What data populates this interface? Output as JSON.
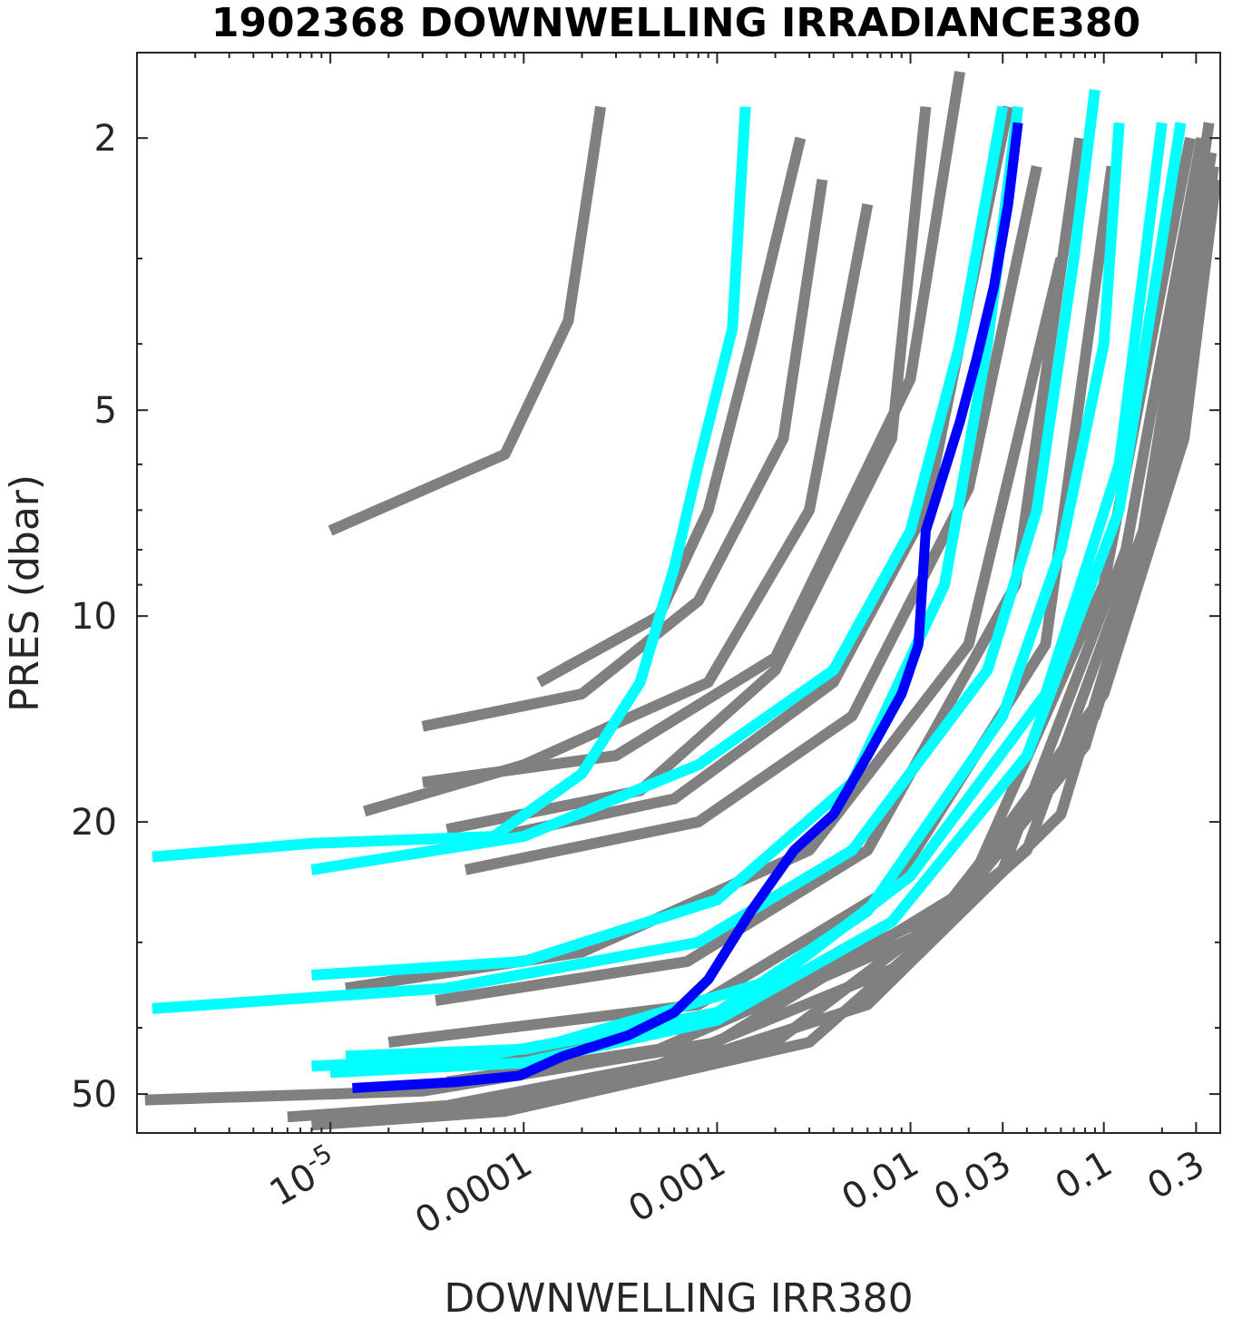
{
  "chart_data": {
    "type": "line",
    "title": "1902368  DOWNWELLING IRRADIANCE380",
    "xlabel": "DOWNWELLING IRR380",
    "ylabel": "PRES (dbar)",
    "x_scale": "log",
    "y_scale": "log",
    "y_reversed": true,
    "xlim": [
      1e-06,
      0.4
    ],
    "ylim": [
      1.5,
      57
    ],
    "x_ticks": [
      {
        "value": 1e-05,
        "base": "10",
        "exp": "-5"
      },
      {
        "value": 0.0001,
        "label": "0.0001"
      },
      {
        "value": 0.001,
        "label": "0.001"
      },
      {
        "value": 0.01,
        "label": "0.01"
      },
      {
        "value": 0.03,
        "label": "0.03"
      },
      {
        "value": 0.1,
        "label": "0.1"
      },
      {
        "value": 0.3,
        "label": "0.3"
      }
    ],
    "y_ticks": [
      {
        "value": 2,
        "label": "2"
      },
      {
        "value": 5,
        "label": "5"
      },
      {
        "value": 10,
        "label": "10"
      },
      {
        "value": 20,
        "label": "20"
      },
      {
        "value": 50,
        "label": "50"
      }
    ],
    "grid": false,
    "legend": "none",
    "colors": {
      "history": "#808080",
      "recent": "#00ffff",
      "current": "#0000ff"
    },
    "series": [
      {
        "group": "history",
        "points": [
          [
            1e-05,
            7.5
          ],
          [
            8e-05,
            5.8
          ],
          [
            0.00017,
            3.7
          ],
          [
            0.00025,
            1.8
          ]
        ]
      },
      {
        "group": "history",
        "points": [
          [
            0.00012,
            12.5
          ],
          [
            0.0005,
            10.0
          ],
          [
            0.0009,
            7.0
          ],
          [
            0.0015,
            4.0
          ],
          [
            0.0027,
            2.0
          ]
        ]
      },
      {
        "group": "history",
        "points": [
          [
            3e-05,
            14.5
          ],
          [
            0.0002,
            13.0
          ],
          [
            0.0008,
            9.5
          ],
          [
            0.0022,
            5.5
          ],
          [
            0.0035,
            2.3
          ]
        ]
      },
      {
        "group": "history",
        "points": [
          [
            1.5e-05,
            19.3
          ],
          [
            0.0001,
            16.5
          ],
          [
            0.0009,
            12.5
          ],
          [
            0.003,
            7.0
          ],
          [
            0.006,
            2.5
          ]
        ]
      },
      {
        "group": "history",
        "points": [
          [
            4e-05,
            20.5
          ],
          [
            0.0004,
            18.0
          ],
          [
            0.002,
            12.0
          ],
          [
            0.008,
            5.5
          ],
          [
            0.012,
            1.8
          ]
        ]
      },
      {
        "group": "history",
        "points": [
          [
            3e-05,
            17.5
          ],
          [
            0.0003,
            16.0
          ],
          [
            0.002,
            11.5
          ],
          [
            0.01,
            4.5
          ],
          [
            0.018,
            1.6
          ]
        ]
      },
      {
        "group": "history",
        "points": [
          [
            5e-05,
            21.5
          ],
          [
            0.0006,
            18.5
          ],
          [
            0.004,
            12.5
          ],
          [
            0.012,
            7.0
          ],
          [
            0.032,
            1.8
          ]
        ]
      },
      {
        "group": "history",
        "points": [
          [
            5e-05,
            23.5
          ],
          [
            0.0008,
            20.0
          ],
          [
            0.005,
            14.0
          ],
          [
            0.02,
            6.5
          ],
          [
            0.045,
            2.2
          ]
        ]
      },
      {
        "group": "history",
        "points": [
          [
            1.2e-05,
            35.0
          ],
          [
            0.0002,
            31.0
          ],
          [
            0.003,
            22.0
          ],
          [
            0.02,
            11.0
          ],
          [
            0.06,
            3.0
          ]
        ]
      },
      {
        "group": "history",
        "points": [
          [
            3.5e-05,
            36.5
          ],
          [
            0.0007,
            32.0
          ],
          [
            0.006,
            22.0
          ],
          [
            0.035,
            9.0
          ],
          [
            0.075,
            2.0
          ]
        ]
      },
      {
        "group": "history",
        "points": [
          [
            2e-05,
            42.0
          ],
          [
            0.0008,
            37.0
          ],
          [
            0.008,
            25.0
          ],
          [
            0.05,
            11.0
          ],
          [
            0.11,
            2.2
          ]
        ]
      },
      {
        "group": "history",
        "points": [
          [
            1.1e-06,
            51.0
          ],
          [
            3e-05,
            49.5
          ],
          [
            0.001,
            42.0
          ],
          [
            0.02,
            25.0
          ],
          [
            0.1,
            9.0
          ],
          [
            0.28,
            2.0
          ]
        ]
      },
      {
        "group": "history",
        "points": [
          [
            6e-06,
            54.0
          ],
          [
            4e-05,
            52.0
          ],
          [
            0.002,
            42.0
          ],
          [
            0.03,
            23.5
          ],
          [
            0.13,
            8.0
          ],
          [
            0.32,
            2.0
          ]
        ]
      },
      {
        "group": "history",
        "points": [
          [
            8e-06,
            55.5
          ],
          [
            8e-05,
            53.0
          ],
          [
            0.003,
            42.0
          ],
          [
            0.04,
            22.0
          ],
          [
            0.16,
            7.5
          ],
          [
            0.34,
            2.0
          ]
        ]
      },
      {
        "group": "history",
        "points": [
          [
            2.5e-05,
            54.0
          ],
          [
            0.0003,
            48.5
          ],
          [
            0.006,
            37.0
          ],
          [
            0.06,
            19.5
          ],
          [
            0.18,
            7.0
          ],
          [
            0.35,
            1.9
          ]
        ]
      },
      {
        "group": "history",
        "points": [
          [
            7e-05,
            52.0
          ],
          [
            0.0004,
            46.5
          ],
          [
            0.01,
            32.0
          ],
          [
            0.08,
            15.5
          ],
          [
            0.2,
            6.5
          ],
          [
            0.36,
            2.1
          ]
        ]
      },
      {
        "group": "history",
        "points": [
          [
            4e-05,
            48.0
          ],
          [
            0.0005,
            43.0
          ],
          [
            0.012,
            29.0
          ],
          [
            0.09,
            14.0
          ],
          [
            0.23,
            6.0
          ],
          [
            0.37,
            2.2
          ]
        ]
      },
      {
        "group": "history",
        "points": [
          [
            6e-05,
            44.5
          ],
          [
            0.0007,
            40.0
          ],
          [
            0.015,
            27.0
          ],
          [
            0.1,
            13.0
          ],
          [
            0.26,
            5.5
          ],
          [
            0.38,
            2.3
          ]
        ]
      },
      {
        "group": "recent",
        "points": [
          [
            1.2e-06,
            22.5
          ],
          [
            8e-06,
            21.5
          ],
          [
            7e-05,
            21.0
          ],
          [
            0.0002,
            17.0
          ],
          [
            0.0004,
            12.5
          ],
          [
            0.0006,
            8.5
          ],
          [
            0.0008,
            6.0
          ],
          [
            0.0012,
            3.8
          ],
          [
            0.0014,
            1.8
          ]
        ]
      },
      {
        "group": "recent",
        "points": [
          [
            8e-06,
            23.5
          ],
          [
            0.0001,
            21.0
          ],
          [
            0.0008,
            16.5
          ],
          [
            0.004,
            12.0
          ],
          [
            0.01,
            7.5
          ],
          [
            0.018,
            4.0
          ],
          [
            0.03,
            1.8
          ]
        ]
      },
      {
        "group": "recent",
        "points": [
          [
            8e-06,
            33.5
          ],
          [
            0.0001,
            32.0
          ],
          [
            0.001,
            26.0
          ],
          [
            0.005,
            17.5
          ],
          [
            0.015,
            9.0
          ],
          [
            0.025,
            4.0
          ],
          [
            0.036,
            1.8
          ]
        ]
      },
      {
        "group": "recent",
        "points": [
          [
            1.2e-06,
            37.5
          ],
          [
            4e-05,
            35.0
          ],
          [
            0.0008,
            30.0
          ],
          [
            0.005,
            22.0
          ],
          [
            0.025,
            12.0
          ],
          [
            0.045,
            7.0
          ],
          [
            0.07,
            3.0
          ],
          [
            0.09,
            1.7
          ]
        ]
      },
      {
        "group": "recent",
        "points": [
          [
            1.2e-05,
            44.0
          ],
          [
            0.0001,
            43.0
          ],
          [
            0.001,
            38.0
          ],
          [
            0.006,
            27.0
          ],
          [
            0.03,
            14.0
          ],
          [
            0.06,
            8.0
          ],
          [
            0.1,
            4.0
          ],
          [
            0.12,
            1.9
          ]
        ]
      },
      {
        "group": "recent",
        "points": [
          [
            8e-06,
            45.5
          ],
          [
            5e-05,
            44.5
          ],
          [
            0.00015,
            42.0
          ],
          [
            0.002,
            34.0
          ],
          [
            0.01,
            24.0
          ],
          [
            0.05,
            13.0
          ],
          [
            0.12,
            6.0
          ],
          [
            0.2,
            1.9
          ]
        ]
      },
      {
        "group": "recent",
        "points": [
          [
            1e-05,
            46.5
          ],
          [
            0.0001,
            45.0
          ],
          [
            0.001,
            39.0
          ],
          [
            0.008,
            28.0
          ],
          [
            0.04,
            16.0
          ],
          [
            0.12,
            7.0
          ],
          [
            0.25,
            1.9
          ]
        ]
      },
      {
        "group": "current",
        "points": [
          [
            1.3e-05,
            49.0
          ],
          [
            4.5e-05,
            48.0
          ],
          [
            9.5e-05,
            47.0
          ],
          [
            0.00016,
            44.0
          ],
          [
            0.00035,
            41.0
          ],
          [
            0.0006,
            38.0
          ],
          [
            0.0009,
            34.0
          ],
          [
            0.0015,
            27.0
          ],
          [
            0.0025,
            22.0
          ],
          [
            0.004,
            19.5
          ],
          [
            0.006,
            16.0
          ],
          [
            0.009,
            13.0
          ],
          [
            0.011,
            11.0
          ],
          [
            0.012,
            7.5
          ],
          [
            0.018,
            5.2
          ],
          [
            0.022,
            4.2
          ],
          [
            0.027,
            3.3
          ],
          [
            0.032,
            2.5
          ],
          [
            0.036,
            1.9
          ]
        ]
      }
    ]
  }
}
